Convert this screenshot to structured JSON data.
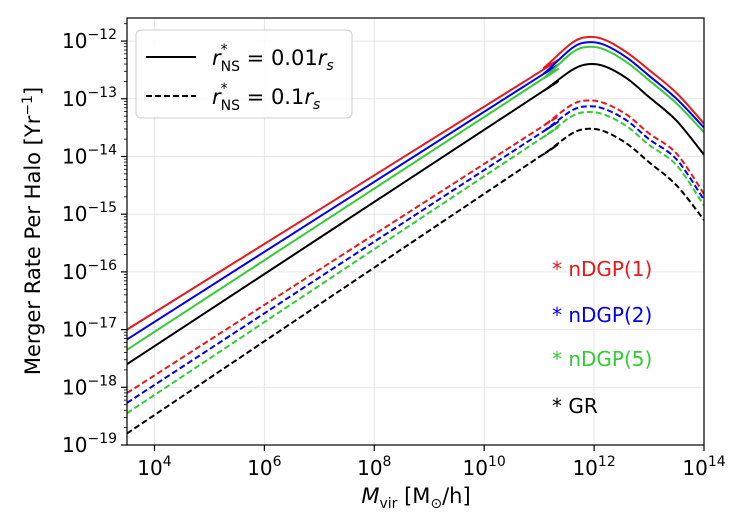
{
  "chart_data": {
    "type": "line",
    "title": "",
    "xlabel": "M_vir [M⊙/h]",
    "xlabel_parts": {
      "symbol": "M",
      "sub": "vir",
      "units_open": "[M",
      "units_sub": "⊙",
      "units_close": "/h]"
    },
    "ylabel": "Merger Rate Per Halo [Yr⁻¹]",
    "ylabel_parts": {
      "main": "Merger Rate Per Halo [Yr",
      "sup": "−1",
      "close": "]"
    },
    "xscale": "log",
    "yscale": "log",
    "x_log_range": [
      3.5,
      14
    ],
    "y_log_range": [
      -19,
      -11.6
    ],
    "x_ticks": [
      {
        "exp": 4,
        "base": "10",
        "sup": "4"
      },
      {
        "exp": 6,
        "base": "10",
        "sup": "6"
      },
      {
        "exp": 8,
        "base": "10",
        "sup": "8"
      },
      {
        "exp": 10,
        "base": "10",
        "sup": "10"
      },
      {
        "exp": 12,
        "base": "10",
        "sup": "12"
      },
      {
        "exp": 14,
        "base": "10",
        "sup": "14"
      }
    ],
    "y_ticks": [
      {
        "exp": -19,
        "base": "10",
        "sup": "−19"
      },
      {
        "exp": -18,
        "base": "10",
        "sup": "−18"
      },
      {
        "exp": -17,
        "base": "10",
        "sup": "−17"
      },
      {
        "exp": -16,
        "base": "10",
        "sup": "−16"
      },
      {
        "exp": -15,
        "base": "10",
        "sup": "−15"
      },
      {
        "exp": -14,
        "base": "10",
        "sup": "−14"
      },
      {
        "exp": -13,
        "base": "10",
        "sup": "−13"
      },
      {
        "exp": -12,
        "base": "10",
        "sup": "−12"
      }
    ],
    "grid": true,
    "legend": {
      "placement": "top-left",
      "entries": [
        {
          "style": "solid",
          "text": "r*_NS = 0.01r_s",
          "r": "r",
          "sup": "*",
          "sub": "NS",
          "eq": " = 0.01",
          "tail": "r",
          "tail_sub": "s"
        },
        {
          "style": "dashed",
          "text": "r*_NS = 0.1r_s",
          "r": "r",
          "sup": "*",
          "sub": "NS",
          "eq": " = 0.1",
          "tail": "r",
          "tail_sub": "s"
        }
      ]
    },
    "annotations": [
      {
        "text": "* nDGP(1)",
        "color": "#e41a1c"
      },
      {
        "text": "* nDGP(2)",
        "color": "#0000ee"
      },
      {
        "text": "* nDGP(5)",
        "color": "#33cc33"
      },
      {
        "text": "* GR",
        "color": "#000000"
      }
    ],
    "x_log_points": [
      3.5,
      10.7,
      11.1,
      11.6,
      11.9,
      12.2,
      12.6,
      13.0,
      13.5,
      14.0
    ],
    "series": [
      {
        "name": "nDGP(1) r*_NS=0.01r_s",
        "color": "#e41a1c",
        "style": "solid",
        "log_values": [
          -17.0,
          -12.72,
          -12.45,
          -12.03,
          -11.93,
          -11.98,
          -12.2,
          -12.5,
          -12.9,
          -13.43
        ]
      },
      {
        "name": "nDGP(2) r*_NS=0.01r_s",
        "color": "#0000ee",
        "style": "solid",
        "log_values": [
          -17.17,
          -12.8,
          -12.55,
          -12.12,
          -12.02,
          -12.07,
          -12.29,
          -12.6,
          -13.0,
          -13.5
        ]
      },
      {
        "name": "nDGP(5) r*_NS=0.01r_s",
        "color": "#33cc33",
        "style": "solid",
        "log_values": [
          -17.35,
          -12.88,
          -12.63,
          -12.2,
          -12.1,
          -12.15,
          -12.37,
          -12.68,
          -13.08,
          -13.58
        ]
      },
      {
        "name": "GR r*_NS=0.01r_s",
        "color": "#000000",
        "style": "solid",
        "log_values": [
          -17.6,
          -13.1,
          -12.85,
          -12.5,
          -12.4,
          -12.44,
          -12.65,
          -12.97,
          -13.38,
          -13.97
        ]
      },
      {
        "name": "nDGP(1) r*_NS=0.1r_s",
        "color": "#e41a1c",
        "style": "dashed",
        "log_values": [
          -18.1,
          -13.7,
          -13.45,
          -13.1,
          -13.03,
          -13.08,
          -13.28,
          -13.6,
          -13.95,
          -14.65
        ]
      },
      {
        "name": "nDGP(2) r*_NS=0.1r_s",
        "color": "#0000ee",
        "style": "dashed",
        "log_values": [
          -18.27,
          -13.8,
          -13.55,
          -13.2,
          -13.13,
          -13.18,
          -13.38,
          -13.7,
          -14.05,
          -14.75
        ]
      },
      {
        "name": "nDGP(5) r*_NS=0.1r_s",
        "color": "#33cc33",
        "style": "dashed",
        "log_values": [
          -18.45,
          -13.9,
          -13.65,
          -13.3,
          -13.23,
          -13.28,
          -13.48,
          -13.8,
          -14.15,
          -14.85
        ]
      },
      {
        "name": "GR r*_NS=0.1r_s",
        "color": "#000000",
        "style": "dashed",
        "log_values": [
          -18.8,
          -14.2,
          -13.95,
          -13.6,
          -13.52,
          -13.57,
          -13.78,
          -14.1,
          -14.5,
          -15.1
        ]
      }
    ]
  }
}
